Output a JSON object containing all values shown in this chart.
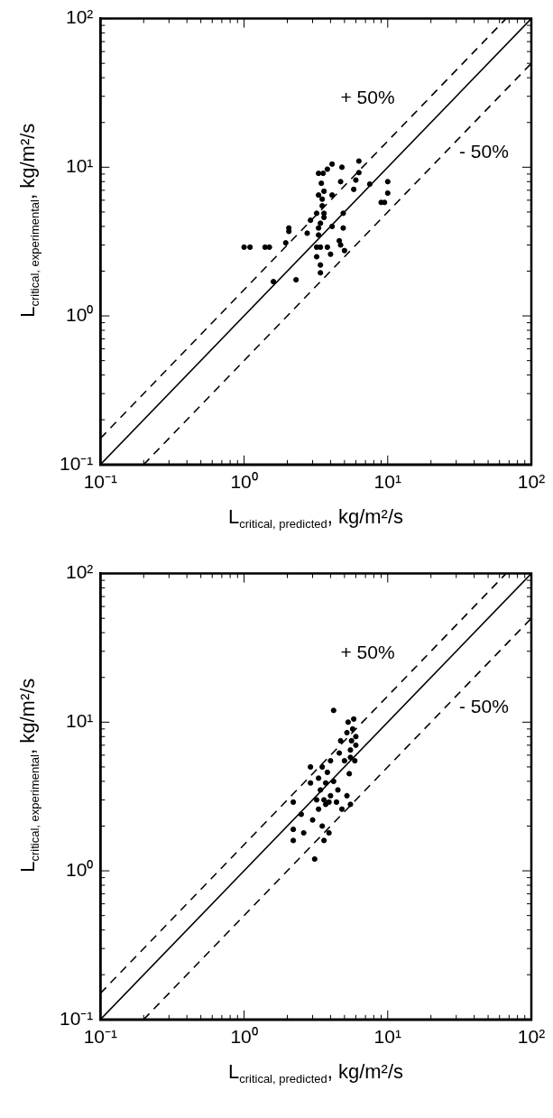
{
  "chart_data": [
    {
      "type": "scatter",
      "xlabel": "L$_{critical, predicted}$, kg/m²/s",
      "ylabel": "L$_{critical, experimental}$, kg/m²/s",
      "log": "xy",
      "grid": false,
      "legend": false,
      "marker": "circle",
      "xlim": [
        0.1,
        100
      ],
      "ylim": [
        0.1,
        100
      ],
      "xticks": [
        {
          "value": 0.1,
          "label": "10⁻¹"
        },
        {
          "value": 0.2,
          "label": null
        },
        {
          "value": 0.3,
          "label": null
        },
        {
          "value": 0.4,
          "label": null
        },
        {
          "value": 0.5,
          "label": null
        },
        {
          "value": 0.6,
          "label": null
        },
        {
          "value": 0.7,
          "label": null
        },
        {
          "value": 0.8,
          "label": null
        },
        {
          "value": 0.9,
          "label": null
        },
        {
          "value": 1,
          "label": "10⁰"
        },
        {
          "value": 2,
          "label": null
        },
        {
          "value": 3,
          "label": null
        },
        {
          "value": 4,
          "label": null
        },
        {
          "value": 5,
          "label": null
        },
        {
          "value": 6,
          "label": null
        },
        {
          "value": 7,
          "label": null
        },
        {
          "value": 8,
          "label": null
        },
        {
          "value": 9,
          "label": null
        },
        {
          "value": 10,
          "label": "10¹"
        },
        {
          "value": 20,
          "label": null
        },
        {
          "value": 30,
          "label": null
        },
        {
          "value": 40,
          "label": null
        },
        {
          "value": 50,
          "label": null
        },
        {
          "value": 60,
          "label": null
        },
        {
          "value": 70,
          "label": null
        },
        {
          "value": 80,
          "label": null
        },
        {
          "value": 90,
          "label": null
        },
        {
          "value": 100,
          "label": "10²"
        }
      ],
      "yticks": [
        {
          "value": 0.1,
          "label": "10⁻¹"
        },
        {
          "value": 0.2,
          "label": null
        },
        {
          "value": 0.3,
          "label": null
        },
        {
          "value": 0.4,
          "label": null
        },
        {
          "value": 0.5,
          "label": null
        },
        {
          "value": 0.6,
          "label": null
        },
        {
          "value": 0.7,
          "label": null
        },
        {
          "value": 0.8,
          "label": null
        },
        {
          "value": 0.9,
          "label": null
        },
        {
          "value": 1,
          "label": "10⁰"
        },
        {
          "value": 2,
          "label": null
        },
        {
          "value": 3,
          "label": null
        },
        {
          "value": 4,
          "label": null
        },
        {
          "value": 5,
          "label": null
        },
        {
          "value": 6,
          "label": null
        },
        {
          "value": 7,
          "label": null
        },
        {
          "value": 8,
          "label": null
        },
        {
          "value": 9,
          "label": null
        },
        {
          "value": 10,
          "label": "10¹"
        },
        {
          "value": 20,
          "label": null
        },
        {
          "value": 30,
          "label": null
        },
        {
          "value": 40,
          "label": null
        },
        {
          "value": 50,
          "label": null
        },
        {
          "value": 60,
          "label": null
        },
        {
          "value": 70,
          "label": null
        },
        {
          "value": 80,
          "label": null
        },
        {
          "value": 90,
          "label": null
        },
        {
          "value": 100,
          "label": "10²"
        }
      ],
      "annotations": [
        "+ 50%",
        "- 50%"
      ],
      "series": [
        {
          "type": "scatter",
          "color": "#000000",
          "x": [
            1.0,
            1.1,
            1.4,
            1.5,
            1.6,
            2.3,
            2.05,
            2.05,
            1.95,
            2.9,
            2.75,
            3.2,
            3.3,
            3.55,
            3.8,
            4.1,
            3.45,
            3.6,
            3.3,
            3.5,
            3.5,
            3.6,
            4.1,
            4.7,
            4.8,
            6.3,
            6.3,
            6.0,
            5.8,
            7.5,
            10,
            10,
            9.5,
            9.0,
            4.9,
            4.9,
            4.6,
            5.0,
            4.7,
            3.3,
            3.3,
            3.4,
            3.2,
            3.4,
            3.4,
            4.0,
            3.8,
            4.1,
            3.6,
            3.4,
            3.2
          ],
          "values": [
            2.9,
            2.9,
            2.9,
            2.9,
            1.7,
            1.75,
            3.9,
            3.7,
            3.1,
            4.4,
            3.6,
            4.9,
            9.1,
            9.1,
            9.7,
            10.5,
            7.8,
            6.9,
            6.5,
            6.1,
            5.5,
            4.9,
            6.5,
            8.0,
            10,
            11,
            9.2,
            8.2,
            7.1,
            7.7,
            8.0,
            6.7,
            5.8,
            5.8,
            4.9,
            3.9,
            3.2,
            2.75,
            3.0,
            3.9,
            3.5,
            2.9,
            2.5,
            2.2,
            1.95,
            2.6,
            2.9,
            4.0,
            4.6,
            4.2,
            2.9
          ]
        },
        {
          "type": "line",
          "color": "#000000",
          "line_style": "solid",
          "marker": "none",
          "x": [
            0.1,
            100
          ],
          "values": [
            0.1,
            100
          ]
        },
        {
          "type": "line",
          "color": "#000000",
          "line_style": "dashed",
          "marker": "none",
          "x": [
            0.1,
            66.7
          ],
          "values": [
            0.15,
            100
          ]
        },
        {
          "type": "line",
          "color": "#000000",
          "line_style": "dashed",
          "marker": "none",
          "x": [
            0.2,
            100
          ],
          "values": [
            0.1,
            50
          ]
        }
      ]
    },
    {
      "type": "scatter",
      "xlabel": "L$_{critical, predicted}$, kg/m²/s",
      "ylabel": "L$_{critical, experimental}$, kg/m²/s",
      "log": "xy",
      "grid": false,
      "legend": false,
      "marker": "circle",
      "xlim": [
        0.1,
        100
      ],
      "ylim": [
        0.1,
        100
      ],
      "xticks": [
        {
          "value": 0.1,
          "label": "10⁻¹"
        },
        {
          "value": 0.2,
          "label": null
        },
        {
          "value": 0.3,
          "label": null
        },
        {
          "value": 0.4,
          "label": null
        },
        {
          "value": 0.5,
          "label": null
        },
        {
          "value": 0.6,
          "label": null
        },
        {
          "value": 0.7,
          "label": null
        },
        {
          "value": 0.8,
          "label": null
        },
        {
          "value": 0.9,
          "label": null
        },
        {
          "value": 1,
          "label": "10⁰"
        },
        {
          "value": 2,
          "label": null
        },
        {
          "value": 3,
          "label": null
        },
        {
          "value": 4,
          "label": null
        },
        {
          "value": 5,
          "label": null
        },
        {
          "value": 6,
          "label": null
        },
        {
          "value": 7,
          "label": null
        },
        {
          "value": 8,
          "label": null
        },
        {
          "value": 9,
          "label": null
        },
        {
          "value": 10,
          "label": "10¹"
        },
        {
          "value": 20,
          "label": null
        },
        {
          "value": 30,
          "label": null
        },
        {
          "value": 40,
          "label": null
        },
        {
          "value": 50,
          "label": null
        },
        {
          "value": 60,
          "label": null
        },
        {
          "value": 70,
          "label": null
        },
        {
          "value": 80,
          "label": null
        },
        {
          "value": 90,
          "label": null
        },
        {
          "value": 100,
          "label": "10²"
        }
      ],
      "yticks": [
        {
          "value": 0.1,
          "label": "10⁻¹"
        },
        {
          "value": 0.2,
          "label": null
        },
        {
          "value": 0.3,
          "label": null
        },
        {
          "value": 0.4,
          "label": null
        },
        {
          "value": 0.5,
          "label": null
        },
        {
          "value": 0.6,
          "label": null
        },
        {
          "value": 0.7,
          "label": null
        },
        {
          "value": 0.8,
          "label": null
        },
        {
          "value": 0.9,
          "label": null
        },
        {
          "value": 1,
          "label": "10⁰"
        },
        {
          "value": 2,
          "label": null
        },
        {
          "value": 3,
          "label": null
        },
        {
          "value": 4,
          "label": null
        },
        {
          "value": 5,
          "label": null
        },
        {
          "value": 6,
          "label": null
        },
        {
          "value": 7,
          "label": null
        },
        {
          "value": 8,
          "label": null
        },
        {
          "value": 9,
          "label": null
        },
        {
          "value": 10,
          "label": "10¹"
        },
        {
          "value": 20,
          "label": null
        },
        {
          "value": 30,
          "label": null
        },
        {
          "value": 40,
          "label": null
        },
        {
          "value": 50,
          "label": null
        },
        {
          "value": 60,
          "label": null
        },
        {
          "value": 70,
          "label": null
        },
        {
          "value": 80,
          "label": null
        },
        {
          "value": 90,
          "label": null
        },
        {
          "value": 100,
          "label": "10²"
        }
      ],
      "annotations": [
        "+ 50%",
        "- 50%"
      ],
      "series": [
        {
          "type": "scatter",
          "color": "#000000",
          "x": [
            2.2,
            2.2,
            2.2,
            2.5,
            2.6,
            2.9,
            2.9,
            3.0,
            3.1,
            3.2,
            3.3,
            3.3,
            3.4,
            3.5,
            3.5,
            3.6,
            3.7,
            3.7,
            3.8,
            3.9,
            4.0,
            4.0,
            4.2,
            4.2,
            4.4,
            4.5,
            4.6,
            4.7,
            4.8,
            5.0,
            5.2,
            5.3,
            5.4,
            5.5,
            5.5,
            5.6,
            5.7,
            5.8,
            5.9,
            6.0,
            6.0,
            5.5,
            5.2,
            3.6,
            3.9
          ],
          "values": [
            2.9,
            1.9,
            1.6,
            2.4,
            1.8,
            3.9,
            5.0,
            2.2,
            1.2,
            3.0,
            4.2,
            2.6,
            3.5,
            5.0,
            2.0,
            1.6,
            3.9,
            2.8,
            4.6,
            1.8,
            3.2,
            5.5,
            12,
            4.0,
            2.9,
            3.5,
            6.2,
            7.5,
            2.6,
            5.5,
            8.5,
            10,
            4.5,
            5.8,
            6.5,
            7.5,
            9.0,
            10.5,
            5.5,
            7.0,
            8.0,
            2.8,
            3.2,
            3.0,
            2.9
          ]
        },
        {
          "type": "line",
          "color": "#000000",
          "line_style": "solid",
          "marker": "none",
          "x": [
            0.1,
            100
          ],
          "values": [
            0.1,
            100
          ]
        },
        {
          "type": "line",
          "color": "#000000",
          "line_style": "dashed",
          "marker": "none",
          "x": [
            0.1,
            66.7
          ],
          "values": [
            0.15,
            100
          ]
        },
        {
          "type": "line",
          "color": "#000000",
          "line_style": "dashed",
          "marker": "none",
          "x": [
            0.2,
            100
          ],
          "values": [
            0.1,
            50
          ]
        }
      ]
    }
  ]
}
